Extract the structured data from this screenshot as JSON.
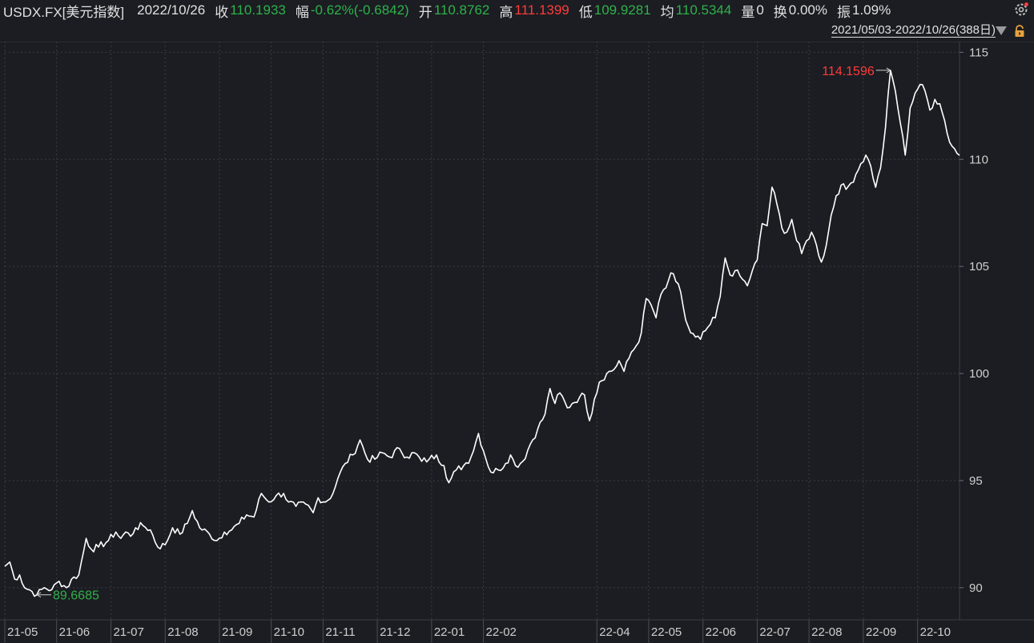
{
  "header": {
    "symbol": "USDX.FX[美元指数]",
    "date": "2022/10/26",
    "close_label": "收",
    "close_value": "110.1933",
    "change_label": "幅",
    "change_value": "-0.62%(-0.6842)",
    "open_label": "开",
    "open_value": "110.8762",
    "high_label": "高",
    "high_value": "111.1399",
    "low_label": "低",
    "low_value": "109.9281",
    "avg_label": "均",
    "avg_value": "110.5344",
    "volume_label": "量",
    "volume_value": "0",
    "turnover_label": "换",
    "turnover_value": "0.00%",
    "amplitude_label": "振",
    "amplitude_value": "1.09%",
    "settings_icon": "gear-icon"
  },
  "range": {
    "text": "2021/05/03-2022/10/26(388日)",
    "dropdown_icon": "triangle-down-icon",
    "lock_icon": "lock-icon"
  },
  "colors": {
    "background": "#1b1d22",
    "line": "#ffffff",
    "grid": "#3a3d44",
    "up": "#ff3b3b",
    "down": "#2fb14a"
  },
  "chart_data": {
    "type": "line",
    "yticks": [
      90,
      95,
      100,
      105,
      110,
      115
    ],
    "ylim": [
      88.5,
      115.5
    ],
    "xlim": [
      0,
      387
    ],
    "xtick_labels": [
      {
        "label": "21-05",
        "i": 0
      },
      {
        "label": "21-06",
        "i": 21
      },
      {
        "label": "21-07",
        "i": 43
      },
      {
        "label": "21-08",
        "i": 65
      },
      {
        "label": "21-09",
        "i": 87
      },
      {
        "label": "21-10",
        "i": 108
      },
      {
        "label": "21-11",
        "i": 129
      },
      {
        "label": "21-12",
        "i": 151
      },
      {
        "label": "22-01",
        "i": 173
      },
      {
        "label": "22-02",
        "i": 194
      },
      {
        "label": "22-04",
        "i": 240
      },
      {
        "label": "22-05",
        "i": 261
      },
      {
        "label": "22-06",
        "i": 283
      },
      {
        "label": "22-07",
        "i": 305
      },
      {
        "label": "22-08",
        "i": 326
      },
      {
        "label": "22-09",
        "i": 348
      },
      {
        "label": "22-10",
        "i": 370
      }
    ],
    "max_label": "114.1596",
    "max_index": 359,
    "max_value": 114.1596,
    "min_label": "89.6685",
    "min_index": 13,
    "min_value": 89.6685,
    "anchors": [
      [
        0,
        91.0
      ],
      [
        2,
        91.2
      ],
      [
        4,
        90.4
      ],
      [
        6,
        90.6
      ],
      [
        8,
        90.0
      ],
      [
        10,
        89.9
      ],
      [
        13,
        89.67
      ],
      [
        16,
        90.0
      ],
      [
        19,
        89.9
      ],
      [
        22,
        90.3
      ],
      [
        25,
        90.0
      ],
      [
        28,
        90.5
      ],
      [
        30,
        90.6
      ],
      [
        33,
        92.3
      ],
      [
        35,
        91.8
      ],
      [
        38,
        91.9
      ],
      [
        42,
        92.2
      ],
      [
        45,
        92.6
      ],
      [
        47,
        92.3
      ],
      [
        49,
        92.6
      ],
      [
        51,
        92.4
      ],
      [
        53,
        92.8
      ],
      [
        56,
        92.9
      ],
      [
        59,
        92.7
      ],
      [
        62,
        91.9
      ],
      [
        65,
        92.0
      ],
      [
        68,
        92.8
      ],
      [
        71,
        92.5
      ],
      [
        74,
        93.0
      ],
      [
        76,
        93.6
      ],
      [
        79,
        92.8
      ],
      [
        83,
        92.5
      ],
      [
        86,
        92.2
      ],
      [
        89,
        92.6
      ],
      [
        92,
        92.7
      ],
      [
        95,
        93.0
      ],
      [
        98,
        93.4
      ],
      [
        101,
        93.3
      ],
      [
        104,
        94.4
      ],
      [
        107,
        94.0
      ],
      [
        110,
        94.3
      ],
      [
        113,
        94.4
      ],
      [
        115,
        94.0
      ],
      [
        118,
        93.8
      ],
      [
        122,
        93.9
      ],
      [
        125,
        93.5
      ],
      [
        127,
        94.2
      ],
      [
        130,
        94.0
      ],
      [
        133,
        94.4
      ],
      [
        135,
        95.1
      ],
      [
        138,
        95.8
      ],
      [
        141,
        96.2
      ],
      [
        144,
        96.9
      ],
      [
        147,
        96.0
      ],
      [
        150,
        96.0
      ],
      [
        153,
        96.3
      ],
      [
        156,
        96.1
      ],
      [
        160,
        96.5
      ],
      [
        163,
        96.1
      ],
      [
        166,
        96.3
      ],
      [
        169,
        95.9
      ],
      [
        172,
        96.0
      ],
      [
        175,
        96.2
      ],
      [
        178,
        95.7
      ],
      [
        180,
        94.9
      ],
      [
        183,
        95.5
      ],
      [
        186,
        95.7
      ],
      [
        189,
        96.1
      ],
      [
        192,
        97.2
      ],
      [
        194,
        96.4
      ],
      [
        197,
        95.4
      ],
      [
        200,
        95.5
      ],
      [
        203,
        95.8
      ],
      [
        205,
        96.2
      ],
      [
        207,
        95.7
      ],
      [
        210,
        95.9
      ],
      [
        213,
        96.7
      ],
      [
        216,
        97.4
      ],
      [
        219,
        98.1
      ],
      [
        221,
        99.3
      ],
      [
        223,
        98.6
      ],
      [
        225,
        99.1
      ],
      [
        228,
        98.4
      ],
      [
        230,
        98.6
      ],
      [
        233,
        98.9
      ],
      [
        235,
        99.0
      ],
      [
        237,
        97.8
      ],
      [
        239,
        98.8
      ],
      [
        241,
        99.6
      ],
      [
        244,
        100.0
      ],
      [
        247,
        100.2
      ],
      [
        249,
        100.6
      ],
      [
        251,
        100.1
      ],
      [
        254,
        101.0
      ],
      [
        256,
        101.3
      ],
      [
        258,
        101.9
      ],
      [
        260,
        103.5
      ],
      [
        262,
        103.2
      ],
      [
        264,
        102.6
      ],
      [
        266,
        103.7
      ],
      [
        268,
        104.0
      ],
      [
        270,
        104.7
      ],
      [
        272,
        104.3
      ],
      [
        274,
        103.8
      ],
      [
        276,
        102.5
      ],
      [
        278,
        101.9
      ],
      [
        280,
        101.7
      ],
      [
        282,
        101.6
      ],
      [
        284,
        102.0
      ],
      [
        286,
        102.3
      ],
      [
        288,
        102.6
      ],
      [
        290,
        103.6
      ],
      [
        292,
        105.4
      ],
      [
        294,
        104.6
      ],
      [
        296,
        104.8
      ],
      [
        299,
        104.4
      ],
      [
        301,
        104.1
      ],
      [
        303,
        104.8
      ],
      [
        305,
        105.3
      ],
      [
        307,
        107.0
      ],
      [
        309,
        106.9
      ],
      [
        311,
        108.7
      ],
      [
        313,
        107.9
      ],
      [
        315,
        106.8
      ],
      [
        317,
        106.6
      ],
      [
        319,
        107.2
      ],
      [
        321,
        106.2
      ],
      [
        323,
        105.6
      ],
      [
        325,
        106.2
      ],
      [
        327,
        106.6
      ],
      [
        329,
        106.0
      ],
      [
        331,
        105.2
      ],
      [
        333,
        106.0
      ],
      [
        335,
        107.4
      ],
      [
        337,
        108.3
      ],
      [
        339,
        108.8
      ],
      [
        341,
        108.6
      ],
      [
        343,
        108.9
      ],
      [
        345,
        109.3
      ],
      [
        347,
        109.8
      ],
      [
        349,
        110.2
      ],
      [
        351,
        109.7
      ],
      [
        353,
        108.7
      ],
      [
        355,
        109.6
      ],
      [
        357,
        111.5
      ],
      [
        359,
        114.16
      ],
      [
        361,
        113.2
      ],
      [
        363,
        111.7
      ],
      [
        365,
        110.2
      ],
      [
        367,
        112.4
      ],
      [
        369,
        113.1
      ],
      [
        371,
        113.5
      ],
      [
        373,
        113.2
      ],
      [
        375,
        112.3
      ],
      [
        377,
        112.8
      ],
      [
        379,
        112.6
      ],
      [
        381,
        111.8
      ],
      [
        383,
        110.8
      ],
      [
        387,
        110.19
      ]
    ]
  }
}
